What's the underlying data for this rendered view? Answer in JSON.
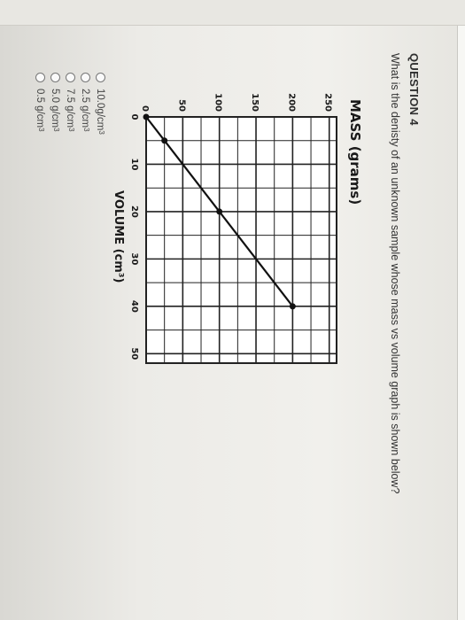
{
  "question": {
    "header": "QUESTION 4",
    "text": "What is the denisty of an unknown sample whose mass vs volume graph is shown below?"
  },
  "options": [
    {
      "label": "10.0g/cm",
      "sup": "3"
    },
    {
      "label": "2.5 g/cm",
      "sup": "3"
    },
    {
      "label": "7.5 g/cm",
      "sup": "3"
    },
    {
      "label": "5.0 g/cm",
      "sup": "3"
    },
    {
      "label": "0.5 g/cm",
      "sup": "3"
    }
  ],
  "chart_data": {
    "type": "line",
    "ylabel": "MASS (grams)",
    "xlabel": "VOLUME (cm³)",
    "x_ticks": [
      "0",
      "10",
      "20",
      "30",
      "40",
      "50"
    ],
    "y_ticks": [
      "0",
      "50",
      "100",
      "150",
      "200",
      "250"
    ],
    "xlim": [
      0,
      52
    ],
    "ylim": [
      0,
      260
    ],
    "grid": true,
    "series": [
      {
        "x": [
          0,
          5,
          20,
          40
        ],
        "y": [
          0,
          25,
          100,
          200
        ]
      }
    ],
    "colors": {
      "line": "#111111",
      "grid": "#222222"
    }
  }
}
